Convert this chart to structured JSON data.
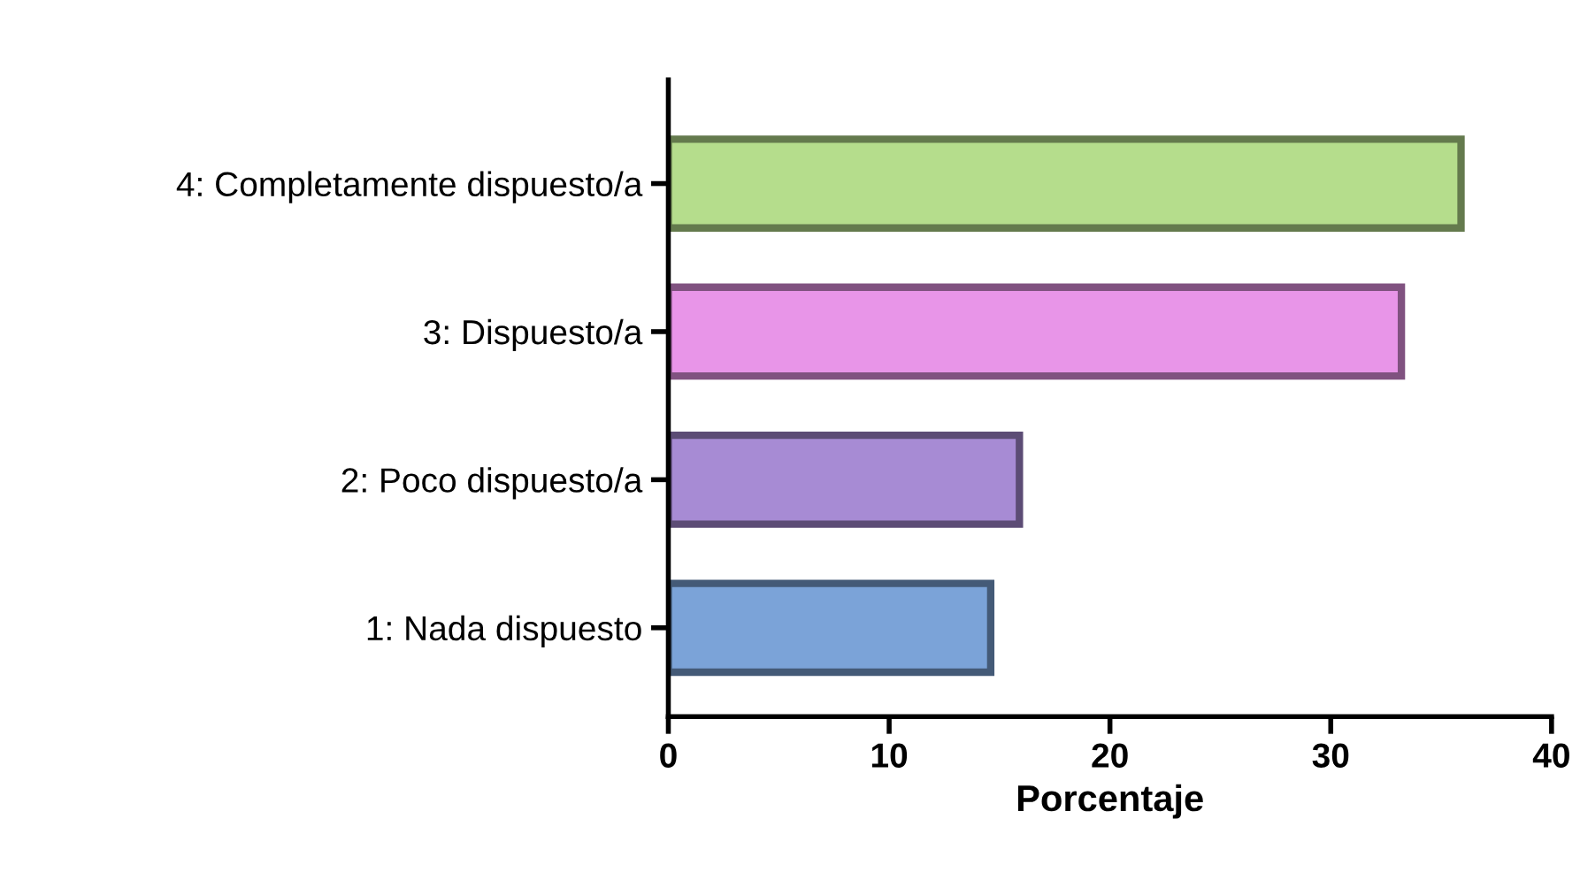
{
  "chart_data": {
    "type": "bar",
    "orientation": "horizontal",
    "xlabel": "Porcentaje",
    "categories": [
      "4: Completamente dispuesto/a",
      "3: Dispuesto/a",
      "2: Poco dispuesto/a",
      "1: Nada dispuesto"
    ],
    "values": [
      35.9,
      33.2,
      15.9,
      14.6
    ],
    "colors": [
      "#b5dd8c",
      "#e895e8",
      "#a78bd4",
      "#7ba3d8"
    ],
    "xlim": [
      0,
      40
    ],
    "xticks": [
      0,
      10,
      20,
      30,
      40
    ],
    "grid": false,
    "legend": false
  }
}
